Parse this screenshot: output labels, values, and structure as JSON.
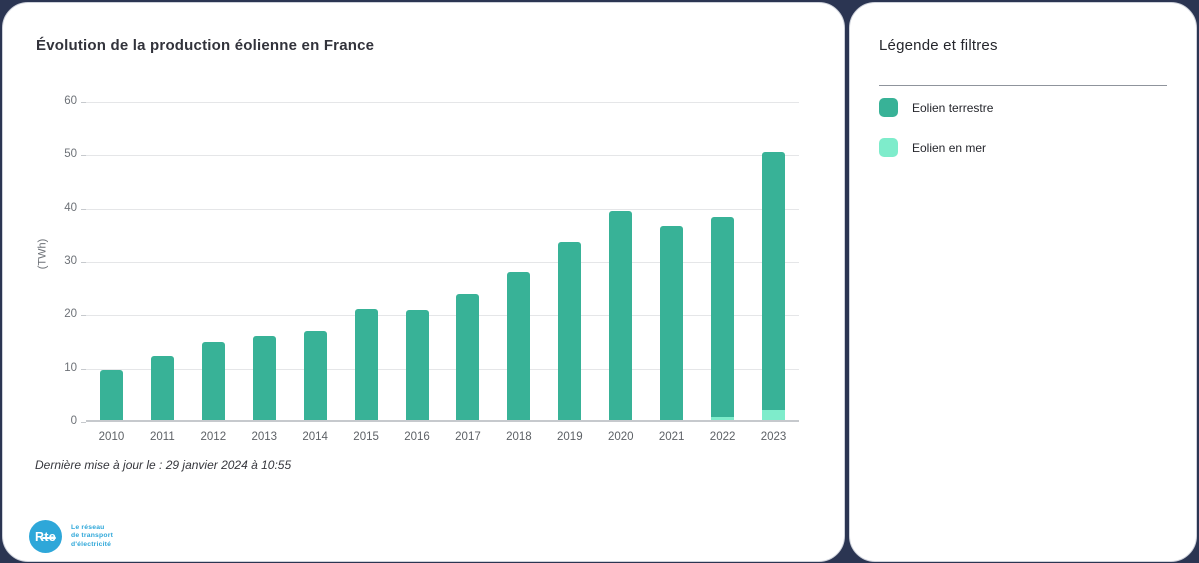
{
  "main_card": {
    "title": "Évolution de la production éolienne en France",
    "last_update": "Dernière mise à jour le : 29 janvier 2024 à 10:55",
    "logo": {
      "mark": "Rte",
      "tagline": [
        "Le réseau",
        "de transport",
        "d'électricité"
      ],
      "color": "#2ea7d9"
    }
  },
  "legend_panel": {
    "title": "Légende et filtres",
    "items": [
      {
        "label": "Eolien terrestre",
        "color": "#38b297"
      },
      {
        "label": "Eolien en mer",
        "color": "#7eeccb"
      }
    ]
  },
  "chart_data": {
    "type": "bar",
    "stacked": true,
    "title": "Évolution de la production éolienne en France",
    "xlabel": "",
    "ylabel": "(TWh)",
    "ylim": [
      0,
      60
    ],
    "yticks": [
      0,
      10,
      20,
      30,
      40,
      50,
      60
    ],
    "grid": true,
    "legend_position": "right-panel",
    "categories": [
      "2010",
      "2011",
      "2012",
      "2013",
      "2014",
      "2015",
      "2016",
      "2017",
      "2018",
      "2019",
      "2020",
      "2021",
      "2022",
      "2023"
    ],
    "series": [
      {
        "name": "Eolien en mer",
        "color": "#7eeccb",
        "stack_order": "bottom",
        "values": [
          0,
          0,
          0,
          0,
          0,
          0,
          0,
          0,
          0,
          0,
          0,
          0,
          0.6,
          1.9
        ]
      },
      {
        "name": "Eolien terrestre",
        "color": "#38b297",
        "stack_order": "top",
        "values": [
          9.5,
          12.0,
          14.7,
          15.8,
          16.8,
          21.0,
          20.8,
          23.8,
          27.9,
          33.5,
          39.5,
          36.7,
          37.8,
          48.6
        ]
      }
    ],
    "totals": [
      9.5,
      12.0,
      14.7,
      15.8,
      16.8,
      21.0,
      20.8,
      23.8,
      27.9,
      33.5,
      39.5,
      36.7,
      38.4,
      50.5
    ]
  }
}
